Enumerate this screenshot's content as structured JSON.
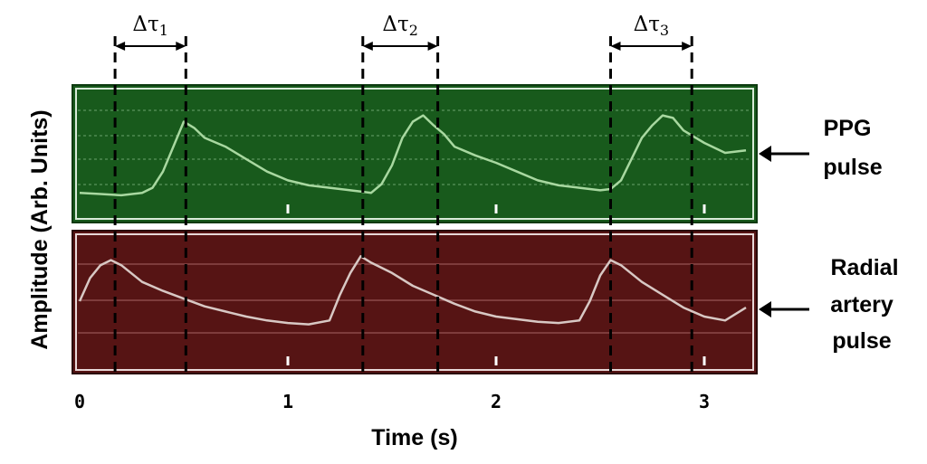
{
  "chart_data": {
    "type": "line",
    "xlabel": "Time (s)",
    "ylabel": "Amplitude (Arb. Units)",
    "xlim": [
      0,
      3.2
    ],
    "xticks": [
      "0",
      "1",
      "2",
      "3"
    ],
    "tick_values": [
      0,
      1,
      2,
      3
    ],
    "grid": true,
    "series": [
      {
        "name": "PPG pulse",
        "panel_color": "#185a1c",
        "line_color": "#a8d8a0",
        "x": [
          0.0,
          0.1,
          0.2,
          0.3,
          0.35,
          0.4,
          0.45,
          0.5,
          0.55,
          0.6,
          0.7,
          0.8,
          0.9,
          1.0,
          1.1,
          1.2,
          1.3,
          1.35,
          1.4,
          1.45,
          1.5,
          1.55,
          1.6,
          1.65,
          1.7,
          1.75,
          1.8,
          1.9,
          2.0,
          2.1,
          2.2,
          2.3,
          2.4,
          2.5,
          2.55,
          2.6,
          2.65,
          2.7,
          2.75,
          2.8,
          2.85,
          2.9,
          3.0,
          3.1,
          3.2
        ],
        "y": [
          0.18,
          0.17,
          0.16,
          0.18,
          0.22,
          0.35,
          0.55,
          0.75,
          0.7,
          0.62,
          0.55,
          0.45,
          0.35,
          0.28,
          0.24,
          0.22,
          0.2,
          0.19,
          0.18,
          0.25,
          0.4,
          0.62,
          0.75,
          0.8,
          0.72,
          0.65,
          0.55,
          0.48,
          0.42,
          0.35,
          0.28,
          0.24,
          0.22,
          0.2,
          0.21,
          0.28,
          0.45,
          0.62,
          0.72,
          0.8,
          0.78,
          0.68,
          0.58,
          0.5,
          0.52
        ]
      },
      {
        "name": "Radial artery pulse",
        "panel_color": "#561414",
        "line_color": "#d8c8c4",
        "x": [
          0.0,
          0.05,
          0.1,
          0.15,
          0.2,
          0.3,
          0.4,
          0.5,
          0.6,
          0.7,
          0.8,
          0.9,
          1.0,
          1.1,
          1.2,
          1.25,
          1.3,
          1.35,
          1.4,
          1.5,
          1.6,
          1.7,
          1.8,
          1.9,
          2.0,
          2.1,
          2.2,
          2.3,
          2.4,
          2.45,
          2.5,
          2.55,
          2.6,
          2.7,
          2.8,
          2.9,
          3.0,
          3.1,
          3.2
        ],
        "y": [
          0.5,
          0.68,
          0.78,
          0.82,
          0.78,
          0.65,
          0.58,
          0.52,
          0.46,
          0.42,
          0.38,
          0.35,
          0.33,
          0.32,
          0.35,
          0.55,
          0.72,
          0.85,
          0.8,
          0.72,
          0.62,
          0.55,
          0.48,
          0.42,
          0.38,
          0.36,
          0.34,
          0.33,
          0.35,
          0.5,
          0.7,
          0.82,
          0.78,
          0.65,
          0.55,
          0.45,
          0.38,
          0.35,
          0.45
        ]
      }
    ],
    "annotations": [
      {
        "label": "Δτ",
        "sub": "1",
        "x_start": 0.17,
        "x_end": 0.51
      },
      {
        "label": "Δτ",
        "sub": "2",
        "x_start": 1.36,
        "x_end": 1.72
      },
      {
        "label": "Δτ",
        "sub": "3",
        "x_start": 2.55,
        "x_end": 2.94
      }
    ],
    "right_labels": [
      {
        "lines": [
          "PPG",
          "pulse"
        ]
      },
      {
        "lines": [
          "Radial",
          "artery",
          "pulse"
        ]
      }
    ]
  }
}
